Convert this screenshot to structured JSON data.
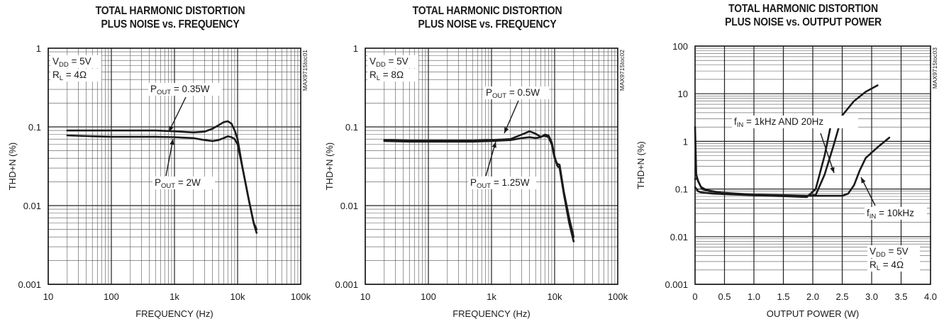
{
  "chart_data": [
    {
      "type": "line",
      "title_line1": "TOTAL HARMONIC DISTORTION",
      "title_line2": "PLUS NOISE vs. FREQUENCY",
      "xlabel": "FREQUENCY (Hz)",
      "ylabel": "THD+N (%)",
      "x_scale": "log",
      "y_scale": "log",
      "xlim": [
        10,
        100000
      ],
      "ylim": [
        0.001,
        1
      ],
      "x_ticks": [
        "10",
        "100",
        "1k",
        "10k",
        "100k"
      ],
      "y_ticks": [
        "0.001",
        "0.01",
        "0.1",
        "1"
      ],
      "part_number": "MAX9715toc01",
      "conditions": [
        {
          "main": "V",
          "sub": "DD",
          "rest": " = 5V"
        },
        {
          "main": "R",
          "sub": "L",
          "rest": " = 4Ω"
        }
      ],
      "annotations": [
        {
          "main": "P",
          "sub": "OUT",
          "rest": " = 0.35W"
        },
        {
          "main": "P",
          "sub": "OUT",
          "rest": " = 2W"
        }
      ],
      "series": [
        {
          "x": [
            20,
            50,
            100,
            200,
            500,
            1000,
            2000,
            3000,
            4000,
            5000,
            6000,
            7000,
            8000,
            9000,
            10000,
            12000,
            15000,
            18000,
            20000
          ],
          "y": [
            0.09,
            0.09,
            0.09,
            0.09,
            0.09,
            0.088,
            0.085,
            0.087,
            0.095,
            0.105,
            0.115,
            0.118,
            0.11,
            0.09,
            0.07,
            0.03,
            0.012,
            0.006,
            0.005
          ]
        },
        {
          "x": [
            20,
            50,
            100,
            200,
            500,
            1000,
            2000,
            3000,
            4000,
            5000,
            6000,
            7000,
            8000,
            9000,
            10000,
            12000,
            15000,
            18000,
            20000
          ],
          "y": [
            0.078,
            0.076,
            0.075,
            0.075,
            0.075,
            0.074,
            0.072,
            0.068,
            0.066,
            0.068,
            0.072,
            0.076,
            0.074,
            0.07,
            0.06,
            0.03,
            0.012,
            0.006,
            0.0045
          ]
        }
      ]
    },
    {
      "type": "line",
      "title_line1": "TOTAL HARMONIC DISTORTION",
      "title_line2": "PLUS NOISE vs. FREQUENCY",
      "xlabel": "FREQUENCY (Hz)",
      "ylabel": "THD+N (%)",
      "x_scale": "log",
      "y_scale": "log",
      "xlim": [
        10,
        100000
      ],
      "ylim": [
        0.001,
        1
      ],
      "x_ticks": [
        "10",
        "100",
        "1k",
        "10k",
        "100k"
      ],
      "y_ticks": [
        "0.001",
        "0.01",
        "0.1",
        "1"
      ],
      "part_number": "MAX9715toc02",
      "conditions": [
        {
          "main": "V",
          "sub": "DD",
          "rest": " = 5V"
        },
        {
          "main": "R",
          "sub": "L",
          "rest": " = 8Ω"
        }
      ],
      "annotations": [
        {
          "main": "P",
          "sub": "OUT",
          "rest": " = 0.5W"
        },
        {
          "main": "P",
          "sub": "OUT",
          "rest": " = 1.25W"
        }
      ],
      "series": [
        {
          "x": [
            20,
            50,
            100,
            200,
            500,
            1000,
            2000,
            3000,
            4000,
            5000,
            6000,
            7000,
            8000,
            9000,
            10000,
            11000,
            12000,
            14000,
            17000,
            20000
          ],
          "y": [
            0.068,
            0.067,
            0.067,
            0.067,
            0.067,
            0.068,
            0.07,
            0.08,
            0.088,
            0.082,
            0.075,
            0.077,
            0.074,
            0.06,
            0.04,
            0.034,
            0.033,
            0.015,
            0.007,
            0.004
          ]
        },
        {
          "x": [
            20,
            50,
            100,
            200,
            500,
            1000,
            2000,
            3000,
            4000,
            5000,
            6000,
            7000,
            8000,
            9000,
            10000,
            11000,
            12000,
            14000,
            17000,
            20000
          ],
          "y": [
            0.066,
            0.065,
            0.065,
            0.065,
            0.065,
            0.066,
            0.068,
            0.072,
            0.074,
            0.072,
            0.074,
            0.08,
            0.078,
            0.064,
            0.042,
            0.032,
            0.03,
            0.014,
            0.006,
            0.0035
          ]
        }
      ]
    },
    {
      "type": "line",
      "title_line1": "TOTAL HARMONIC DISTORTION",
      "title_line2": "PLUS NOISE vs. OUTPUT POWER",
      "xlabel": "OUTPUT POWER (W)",
      "ylabel": "THD+N (%)",
      "x_scale": "linear",
      "y_scale": "log",
      "xlim": [
        0,
        4.0
      ],
      "ylim": [
        0.001,
        100
      ],
      "x_ticks": [
        "0",
        "0.5",
        "1.0",
        "1.5",
        "2.0",
        "2.5",
        "3.0",
        "3.5",
        "4.0"
      ],
      "y_ticks": [
        "0.001",
        "0.01",
        "0.1",
        "1",
        "10",
        "100"
      ],
      "part_number": "MAX9715toc03",
      "conditions": [
        {
          "main": "V",
          "sub": "DD",
          "rest": " = 5V"
        },
        {
          "main": "R",
          "sub": "L",
          "rest": " = 4Ω"
        }
      ],
      "annotations": [
        {
          "main": "f",
          "sub": "IN",
          "rest": " = 1kHz AND 20Hz"
        },
        {
          "main": "f",
          "sub": "IN",
          "rest": " = 10kHz"
        }
      ],
      "series": [
        {
          "x": [
            0.0,
            0.02,
            0.05,
            0.1,
            0.2,
            0.4,
            0.7,
            1.0,
            1.3,
            1.6,
            1.9,
            2.05,
            2.2,
            2.35,
            2.5,
            2.7,
            2.9,
            3.1
          ],
          "y": [
            2.0,
            0.2,
            0.15,
            0.11,
            0.095,
            0.085,
            0.08,
            0.076,
            0.075,
            0.074,
            0.072,
            0.075,
            0.2,
            0.8,
            3.5,
            7.0,
            11.0,
            15.0
          ]
        },
        {
          "x": [
            0.0,
            0.03,
            0.07,
            0.12,
            0.25,
            0.5,
            0.8,
            1.0,
            1.3,
            1.6,
            1.9,
            2.05,
            2.2,
            2.3
          ],
          "y": [
            0.16,
            0.17,
            0.13,
            0.1,
            0.09,
            0.082,
            0.078,
            0.074,
            0.072,
            0.07,
            0.068,
            0.1,
            0.5,
            2.0
          ]
        },
        {
          "x": [
            0.0,
            0.05,
            0.1,
            0.3,
            0.6,
            1.0,
            1.4,
            1.8,
            2.2,
            2.5,
            2.6,
            2.7,
            2.8,
            2.9,
            3.1,
            3.3
          ],
          "y": [
            0.11,
            0.09,
            0.085,
            0.08,
            0.077,
            0.074,
            0.072,
            0.072,
            0.072,
            0.072,
            0.08,
            0.12,
            0.25,
            0.45,
            0.75,
            1.2
          ]
        }
      ]
    }
  ]
}
